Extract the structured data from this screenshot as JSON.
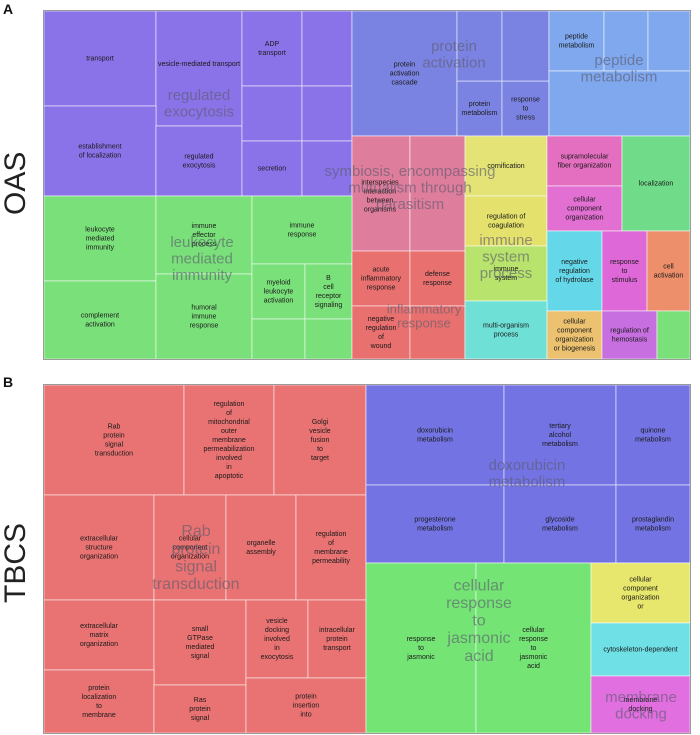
{
  "panels": [
    {
      "letter": "A",
      "side_label": "OAS",
      "chart_data": {
        "type": "treemap",
        "groups": [
          {
            "name": "regulated exocytosis",
            "color": "#8a73e8",
            "terms": [
              "transport",
              "vesicle-mediated transport",
              "ADP transport",
              "establishment of localization",
              "regulated exocytosis",
              "secretion"
            ]
          },
          {
            "name": "protein activation cascade",
            "color": "#7b83e2",
            "terms": [
              "protein activation cascade",
              "protein metabolism",
              "response to stress"
            ]
          },
          {
            "name": "peptide metabolism",
            "color": "#7fa8ee",
            "terms": [
              "peptide metabolism"
            ]
          },
          {
            "name": "symbiosis, encompassing mutualism through parasitism",
            "color": "#df7d9c",
            "terms": [
              "interspecies interaction between organisms"
            ]
          },
          {
            "name": "leukocyte mediated immunity",
            "color": "#7ae07a",
            "terms": [
              "leukocyte mediated immunity",
              "immune effector process",
              "immune response",
              "complement activation",
              "humoral immune response",
              "myeloid leukocyte activation",
              "B cell receptor signaling pathway"
            ]
          },
          {
            "name": "inflammatory response",
            "color": "#e8706f",
            "terms": [
              "acute inflammatory response",
              "defense response",
              "negative regulation of wound healing"
            ]
          },
          {
            "name": "cornification",
            "color": "#e3e376",
            "terms": [
              "cornification"
            ]
          },
          {
            "name": "regulation of coagulation",
            "color": "#e4e16c",
            "terms": [
              "regulation of coagulation"
            ]
          },
          {
            "name": "supramolecular fiber organization",
            "color": "#e46fc0",
            "terms": [
              "supramolecular fiber organization"
            ]
          },
          {
            "name": "cellular component organization",
            "color": "#e26fd2",
            "terms": [
              "cellular component organization"
            ]
          },
          {
            "name": "localization",
            "color": "#70dc8a",
            "terms": [
              "localization"
            ]
          },
          {
            "name": "immune system process",
            "color": "#b8e36c",
            "terms": [
              "immune system process"
            ]
          },
          {
            "name": "negative regulation of hydrolase activity",
            "color": "#64d8e8",
            "terms": [
              "negative regulation of hydrolase activity"
            ]
          },
          {
            "name": "response to stimulus",
            "color": "#df68d8",
            "terms": [
              "response to stimulus"
            ]
          },
          {
            "name": "cell activation",
            "color": "#ec8f6a",
            "terms": [
              "cell activation"
            ]
          },
          {
            "name": "multi-organism process",
            "color": "#6fe0d6",
            "terms": [
              "multi-organism process"
            ]
          },
          {
            "name": "cellular component organization or biogenesis",
            "color": "#ecc270",
            "terms": [
              "cellular component organization or biogenesis"
            ]
          },
          {
            "name": "regulation of hemostasis",
            "color": "#c76fe0",
            "terms": [
              "regulation of hemostasis"
            ]
          }
        ]
      }
    },
    {
      "letter": "B",
      "side_label": "TBCS",
      "chart_data": {
        "type": "treemap",
        "groups": [
          {
            "name": "Rab protein signal transduction",
            "color": "#e97272",
            "terms": [
              "Rab protein signal transduction",
              "regulation of mitochondrial outer membrane permeabilization involved in apoptotic signaling pathway",
              "Golgi vesicle fusion to target membrane",
              "extracellular structure organization",
              "cellular component organization",
              "organelle assembly",
              "regulation of membrane permeability",
              "extracellular matrix organization",
              "small GTPase mediated signal transduction",
              "vesicle docking involved in exocytosis",
              "intracellular protein transport",
              "protein localization to membrane",
              "Ras protein signal transduction",
              "protein insertion into membrane"
            ]
          },
          {
            "name": "doxorubicin metabolism",
            "color": "#7373e4",
            "terms": [
              "doxorubicin metabolism",
              "tertiary alcohol metabolism",
              "quinone metabolism",
              "progesterone metabolism",
              "glycoside metabolism",
              "prostaglandin metabolism"
            ]
          },
          {
            "name": "cellular response to jasmonic acid stimulus",
            "color": "#74e474",
            "terms": [
              "response to jasmonic acid",
              "cellular response to jasmonic acid stimulus"
            ]
          },
          {
            "name": "cellular component organization or biogenesis",
            "color": "#e7e76d",
            "terms": [
              "cellular component organization or biogenesis"
            ]
          },
          {
            "name": "cytoskeleton-dependent cytokinesis",
            "color": "#6ee0e6",
            "terms": [
              "cytoskeleton-dependent cytokinesis"
            ]
          },
          {
            "name": "membrane docking",
            "color": "#e16fe0",
            "terms": [
              "membrane docking"
            ]
          }
        ]
      }
    }
  ]
}
